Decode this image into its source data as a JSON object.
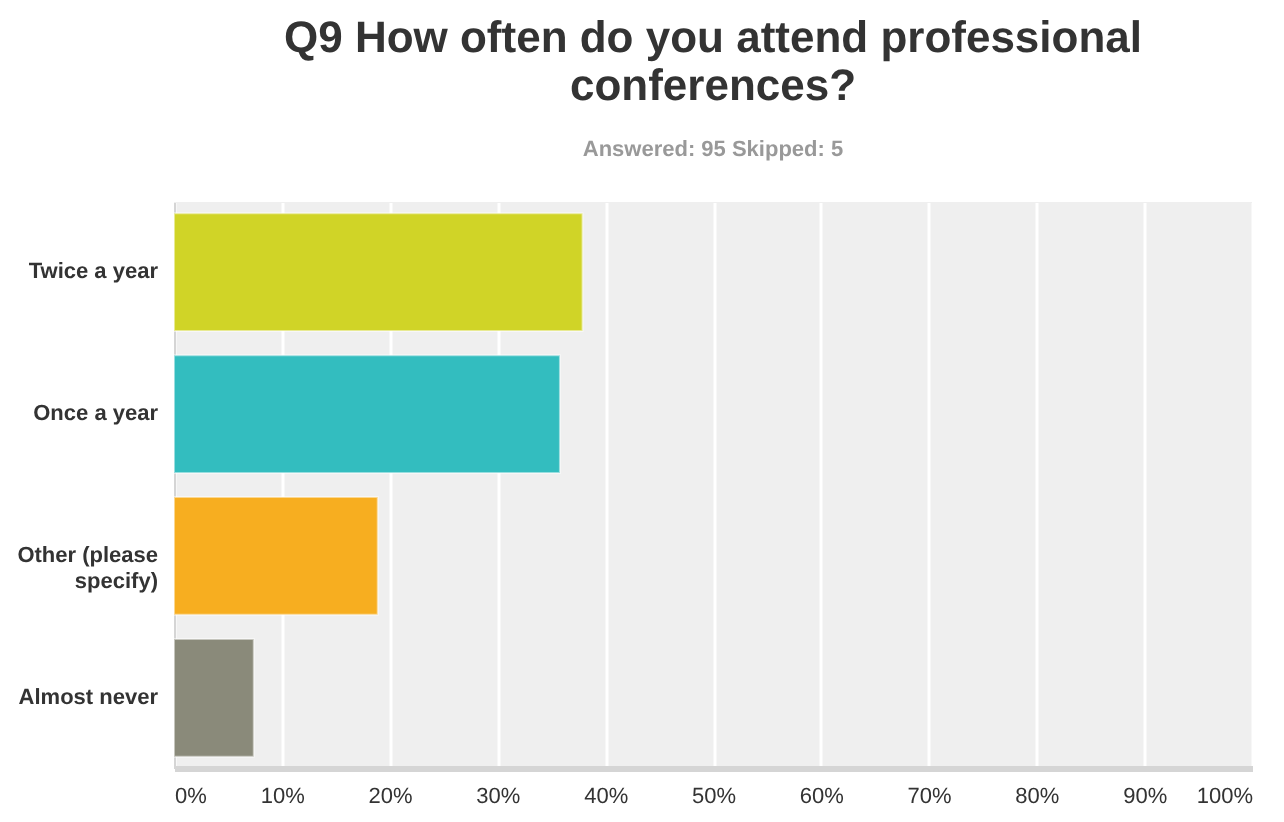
{
  "chart_data": {
    "type": "bar",
    "orientation": "horizontal",
    "title": "Q9 How often do you attend professional conferences?",
    "subtitle": "Answered: 95    Skipped: 5",
    "categories": [
      "Twice a year",
      "Once a year",
      "Other (please specify)",
      "Almost never"
    ],
    "values": [
      37.9,
      35.8,
      18.9,
      7.4
    ],
    "colors": [
      "#d0d427",
      "#33bdbf",
      "#f7ae20",
      "#8a8a7a"
    ],
    "xlim": [
      0,
      100
    ],
    "xticks": [
      {
        "value": 0,
        "label": "0%"
      },
      {
        "value": 10,
        "label": "10%"
      },
      {
        "value": 20,
        "label": "20%"
      },
      {
        "value": 30,
        "label": "30%"
      },
      {
        "value": 40,
        "label": "40%"
      },
      {
        "value": 50,
        "label": "50%"
      },
      {
        "value": 60,
        "label": "60%"
      },
      {
        "value": 70,
        "label": "70%"
      },
      {
        "value": 80,
        "label": "80%"
      },
      {
        "value": 90,
        "label": "90%"
      },
      {
        "value": 100,
        "label": "100%"
      }
    ],
    "grid": "x"
  }
}
